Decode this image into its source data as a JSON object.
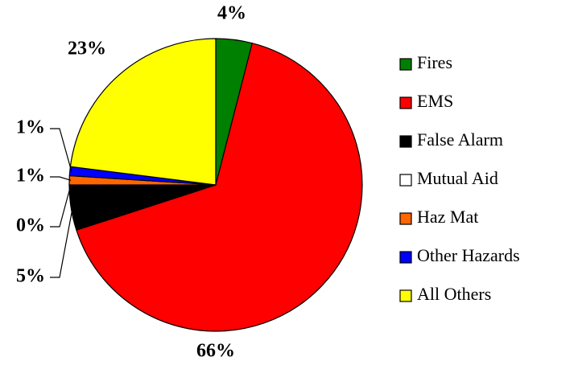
{
  "chart_data": {
    "type": "pie",
    "categories": [
      "Fires",
      "EMS",
      "False Alarm",
      "Mutual Aid",
      "Haz Mat",
      "Other Hazards",
      "All Others"
    ],
    "values": [
      4,
      66,
      5,
      0,
      1,
      1,
      23
    ],
    "value_labels": [
      "4%",
      "66%",
      "5%",
      "0%",
      "1%",
      "1%",
      "23%"
    ],
    "colors": [
      "#008000",
      "#ff0000",
      "#000000",
      "#ffffff",
      "#ff6600",
      "#0000ff",
      "#ffff00"
    ],
    "legend": "right"
  }
}
